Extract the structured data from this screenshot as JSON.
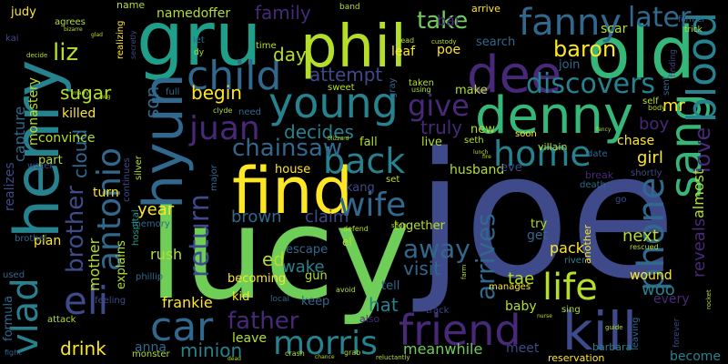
{
  "words": {
    "joe": "joe",
    "lucy": "lucy",
    "henry": "henry",
    "gru": "gru",
    "phil": "phil",
    "dee": "dee",
    "old": "old",
    "find": "find",
    "hyun": "hyun",
    "sang": "sang",
    "denny": "denny",
    "kill": "kill",
    "fanny": "fanny",
    "blood": "blood",
    "child": "child",
    "young": "young",
    "friend": "friend",
    "car": "car",
    "eli": "eli",
    "vlad": "vlad",
    "phone": "phone",
    "antonio": "antonio",
    "life": "life",
    "home": "home",
    "back": "back",
    "morris": "morris",
    "wife": "wife",
    "give": "give",
    "discovers": "discovers",
    "juan": "juan",
    "later": "later",
    "love": "love",
    "chainsaw": "chainsaw",
    "return": "return",
    "father": "father",
    "arrives": "arrives",
    "brother": "brother",
    "away": "away",
    "baron": "baron",
    "take": "take",
    "family": "family",
    "begin": "begin",
    "decides": "decides",
    "truly": "truly",
    "attempt": "attempt",
    "sugar": "sugar",
    "liz": "liz",
    "killed": "killed",
    "cloud": "cloud",
    "day": "day",
    "son": "son",
    "mr": "mr",
    "boy": "boy",
    "girl": "girl",
    "next": "next",
    "woo": "woo",
    "tae": "tae",
    "reveals": "reveals",
    "almost": "almost",
    "brown": "brown",
    "claim": "claim",
    "year": "year",
    "hat": "hat",
    "minion": "minion",
    "drink": "drink",
    "frankie": "frankie",
    "meanwhile": "meanwhile",
    "visit": "visit",
    "ed": "ed",
    "wake": "wake",
    "mother": "mother",
    "capture": "capture",
    "monastery": "monastery",
    "judy": "judy",
    "realizes": "realizes",
    "formula": "formula",
    "namedoffer": "namedoffer",
    "poe": "poe",
    "bar": "bar",
    "search": "search",
    "leaf": "leaf",
    "scar": "scar",
    "join": "join",
    "chase": "chase",
    "husband": "husband",
    "eve": "eve",
    "kang": "kang",
    "pack": "pack",
    "try": "try",
    "get": "get",
    "become": "become",
    "meet": "meet",
    "baby": "baby",
    "wound": "wound",
    "every": "every",
    "anna": "anna",
    "explains": "explains",
    "plan": "plan",
    "convince": "convince",
    "part": "part",
    "turn": "turn",
    "rush": "rush",
    "becoming": "becoming",
    "kid": "kid",
    "leave": "leave",
    "tell": "tell",
    "live": "live",
    "fall": "fall",
    "new": "new",
    "make": "make",
    "together": "together",
    "escape": "escape",
    "gun": "gun",
    "keep": "keep",
    "house": "house",
    "villain": "villain",
    "reservation": "reservation",
    "barbara": "barbara",
    "another": "another",
    "break": "break",
    "death": "death",
    "shortly": "shortly",
    "sent": "sent",
    "self": "self",
    "date": "date",
    "soon": "soon",
    "arrive": "arrive",
    "name": "name",
    "agrees": "agrees",
    "realizing": "realizing",
    "sweet": "sweet",
    "taken": "taken",
    "seth": "seth",
    "manages": "manages",
    "sing": "sing",
    "leaving": "leaving",
    "river": "river",
    "memory": "memory",
    "phillip": "phillip",
    "feeling": "feeling",
    "attack": "attack",
    "monster": "monster",
    "hospital": "hospital",
    "silver": "silver",
    "continues": "continues",
    "water": "water",
    "kai": "kai",
    "used": "used",
    "fight": "fight",
    "brothel": "brothel",
    "full": "full",
    "need": "need",
    "let": "let",
    "time": "time",
    "major": "major",
    "el": "el",
    "band": "band",
    "former": "former",
    "trick": "trick",
    "finding": "finding",
    "forever": "forever",
    "rescued": "rescued",
    "go": "go",
    "local": "local",
    "avoid": "avoid",
    "also": "also",
    "grab": "grab",
    "track": "track",
    "defend": "defend",
    "set": "set",
    "crash": "crash",
    "shop": "shop",
    "body": "body",
    "clyde": "clyde",
    "lead": "lead",
    "using": "using",
    "custody": "custody",
    "gray": "gray",
    "secretly": "secretly",
    "dy": "dy",
    "decide": "decide",
    "reluctantly": "reluctantly",
    "rocket": "rocket",
    "guide": "guide",
    "farm": "farm",
    "blizzard": "blizzard",
    "bizarre": "bizarre",
    "glad": "glad",
    "dead": "dead",
    "chance": "chance",
    "hug": "hug",
    "marry": "marry",
    "fire": "fire",
    "fancy": "fancy",
    "lunch": "lunch",
    "nurse": "nurse"
  },
  "palette": {
    "background": "#000000",
    "colors": [
      "#440154",
      "#482878",
      "#3e4a89",
      "#31688e",
      "#26828e",
      "#1f9e89",
      "#35b779",
      "#6ece58",
      "#b5de2b",
      "#fde725"
    ]
  }
}
